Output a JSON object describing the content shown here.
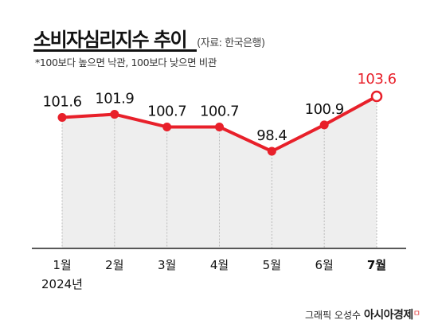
{
  "header": {
    "title": "소비자심리지수 추이",
    "source": "(자료: 한국은행)",
    "subtitle": "*100보다 높으면 낙관, 100보다 낮으면 비관"
  },
  "chart_data": {
    "type": "line",
    "categories": [
      "1월",
      "2월",
      "3월",
      "4월",
      "5월",
      "6월",
      "7월"
    ],
    "year_label": "2024년",
    "values": [
      101.6,
      101.9,
      100.7,
      100.7,
      98.4,
      100.9,
      103.6
    ],
    "value_labels": [
      "101.6",
      "101.9",
      "100.7",
      "100.7",
      "98.4",
      "100.9",
      "103.6"
    ],
    "highlight_index": 6,
    "colors": {
      "line": "#e8202a",
      "highlight_label": "#e8202a",
      "label": "#111111",
      "area": "#eeeeee",
      "gridline": "#bbbbbb",
      "axis": "#222222"
    },
    "grid": "vertical-dashed"
  },
  "credit": {
    "byline": "그래픽 오성수",
    "brand": "아시아경제",
    "brand_mark": "ㅁ"
  }
}
